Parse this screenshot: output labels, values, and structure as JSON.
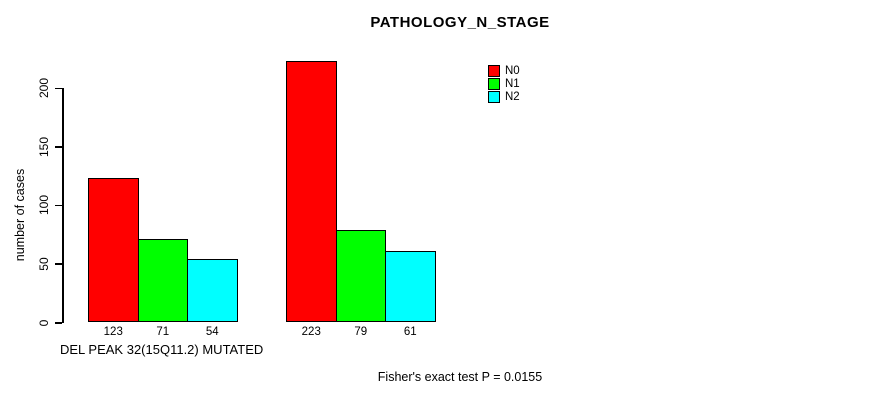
{
  "chart_data": {
    "type": "bar",
    "title": "PATHOLOGY_N_STAGE",
    "ylabel": "number of cases",
    "xlabel": "DEL PEAK 32(15Q11.2) MUTATED",
    "footer_note": "Fisher's exact test P = 0.0155",
    "ylim": [
      0,
      230
    ],
    "yticks": [
      0,
      50,
      100,
      150,
      200
    ],
    "grid": false,
    "legend_position": "top-right",
    "legend_entries": [
      "N0",
      "N1",
      "N2"
    ],
    "colors": {
      "N0": "#FF0000",
      "N1": "#00FF00",
      "N2": "#00FFFF"
    },
    "axis_color": "#000000",
    "bar_border_color": "#000000",
    "background_color": "#FFFFFF",
    "series": [
      {
        "name": "N0",
        "color": "#FF0000",
        "values": [
          123,
          223
        ]
      },
      {
        "name": "N1",
        "color": "#00FF00",
        "values": [
          71,
          79
        ]
      },
      {
        "name": "N2",
        "color": "#00FFFF",
        "values": [
          54,
          61
        ]
      }
    ],
    "bar_value_labels": [
      [
        "123",
        "71",
        "54"
      ],
      [
        "223",
        "79",
        "61"
      ]
    ]
  }
}
